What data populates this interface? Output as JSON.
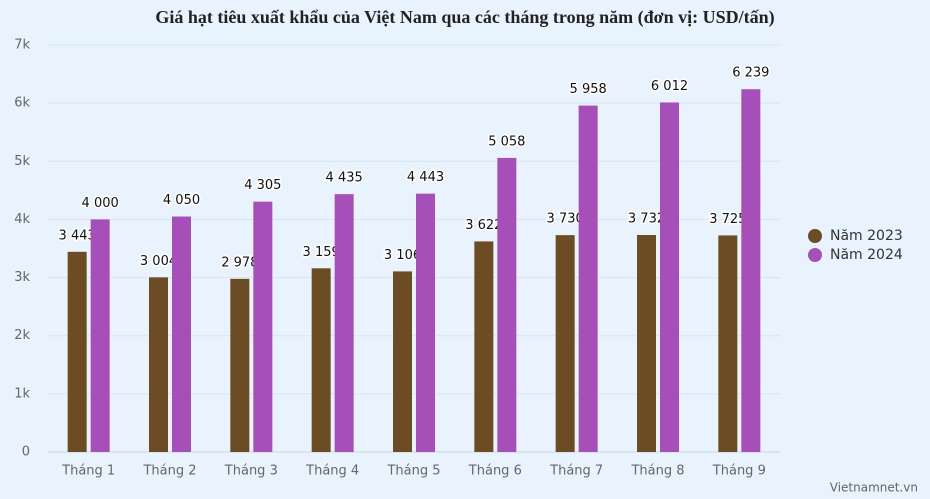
{
  "chart_data": {
    "type": "bar",
    "title": "Giá hạt tiêu xuất khẩu của Việt Nam qua các tháng trong năm (đơn vị: USD/tấn)",
    "categories": [
      "Tháng 1",
      "Tháng 2",
      "Tháng 3",
      "Tháng 4",
      "Tháng 5",
      "Tháng 6",
      "Tháng 7",
      "Tháng 8",
      "Tháng 9"
    ],
    "series": [
      {
        "name": "Năm 2023",
        "color": "#6b4c23",
        "values": [
          3443,
          3004,
          2978,
          3159,
          3106,
          3622,
          3730,
          3732,
          3725
        ],
        "value_labels": [
          "3 443",
          "3 004",
          "2 978",
          "3 159",
          "3 106",
          "3 622",
          "3 730",
          "3 732",
          "3 725"
        ]
      },
      {
        "name": "Năm 2024",
        "color": "#a64fb8",
        "values": [
          4000,
          4050,
          4305,
          4435,
          4443,
          5058,
          5958,
          6012,
          6239
        ],
        "value_labels": [
          "4 000",
          "4 050",
          "4 305",
          "4 435",
          "4 443",
          "5 058",
          "5 958",
          "6 012",
          "6 239"
        ]
      }
    ],
    "ylim": [
      0,
      7000
    ],
    "yticks": [
      0,
      {
        "value": 1000,
        "label": "1k"
      },
      {
        "value": 2000,
        "label": "2k"
      },
      {
        "value": 3000,
        "label": "3k"
      },
      {
        "value": 4000,
        "label": "4k"
      },
      {
        "value": 5000,
        "label": "5k"
      },
      {
        "value": 6000,
        "label": "6k"
      },
      {
        "value": 7000,
        "label": "7k"
      }
    ],
    "grid": true,
    "legend": "right",
    "source": "Vietnamnet.vn"
  }
}
